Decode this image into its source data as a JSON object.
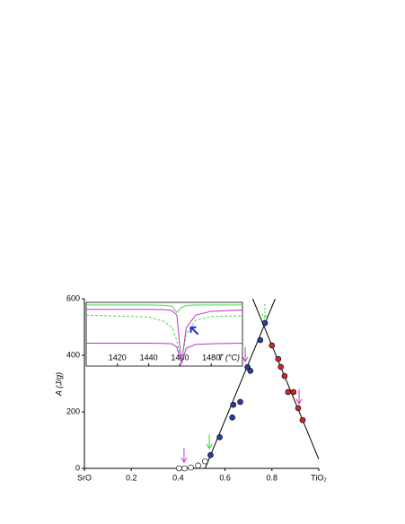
{
  "chart_data": {
    "type": "scatter",
    "y_label": "A (J/g)",
    "xlim": [
      0,
      1
    ],
    "ylim": [
      0,
      600
    ],
    "xticks": [
      {
        "value": 0,
        "label": "SrO"
      },
      0.2,
      0.4,
      0.6,
      0.8,
      {
        "value": 1,
        "label": "TiO₂"
      }
    ],
    "yticks": [
      0,
      200,
      400,
      600
    ],
    "series": [
      {
        "color": "#ffffff",
        "x": [
          0.404,
          0.427,
          0.454,
          0.485,
          0.515
        ],
        "values": [
          0,
          0,
          3,
          10,
          25
        ]
      },
      {
        "color": "#2a3aa8",
        "x": [
          0.538,
          0.577,
          0.631,
          0.635,
          0.665,
          0.696,
          0.708,
          0.75,
          0.77
        ],
        "values": [
          47,
          110,
          180,
          225,
          235,
          358,
          345,
          454,
          514
        ]
      },
      {
        "color": "#cc2626",
        "x": [
          0.8,
          0.827,
          0.838,
          0.854,
          0.869,
          0.892,
          0.912,
          0.931
        ],
        "values": [
          435,
          387,
          359,
          327,
          270,
          270,
          213,
          171
        ]
      }
    ],
    "fit_lines": [
      {
        "color": "#000000",
        "x": [
          0.515,
          0.814
        ],
        "values": [
          0,
          600
        ]
      },
      {
        "color": "#000000",
        "x": [
          0.718,
          1.0
        ],
        "values": [
          600,
          32
        ]
      }
    ],
    "arrows": [
      {
        "x": 0.425,
        "y": 22,
        "color": "#cc33cc",
        "dashed": false
      },
      {
        "x": 0.533,
        "y": 70,
        "color": "#22dd22",
        "dashed": false
      },
      {
        "x": 0.686,
        "y": 378,
        "color": "#cc33cc",
        "dashed": false
      },
      {
        "x": 0.77,
        "y": 530,
        "color": "#22dd22",
        "dashed": true
      },
      {
        "x": 0.916,
        "y": 229,
        "color": "#cc33cc",
        "dashed": false
      }
    ],
    "inset": {
      "type": "line",
      "x_label": "T (°C)",
      "xlim": [
        1400,
        1500
      ],
      "ylim": [
        0,
        100
      ],
      "xticks": [
        1420,
        1440,
        1460,
        1480
      ],
      "x": [
        1400,
        1440,
        1450,
        1455,
        1458,
        1461,
        1464,
        1470,
        1480,
        1500
      ],
      "series": [
        {
          "color": "#44dd44",
          "dashed": false,
          "values": [
            96,
            96,
            95.5,
            94,
            84,
            92,
            95,
            96,
            96,
            96
          ]
        },
        {
          "color": "#bb33cc",
          "dashed": false,
          "values": [
            89,
            89,
            88.5,
            87,
            80,
            4,
            60,
            80,
            86,
            88
          ]
        },
        {
          "color": "#44dd44",
          "dashed": true,
          "values": [
            80,
            77,
            70,
            60,
            40,
            4,
            50,
            72,
            78,
            79
          ]
        },
        {
          "color": "#bb33cc",
          "dashed": false,
          "values": [
            36,
            36,
            35.5,
            35,
            30,
            4,
            28,
            34,
            35,
            36
          ]
        }
      ],
      "arrow": {
        "x": 1467,
        "y": 61,
        "color": "#1a2fd0"
      }
    }
  }
}
